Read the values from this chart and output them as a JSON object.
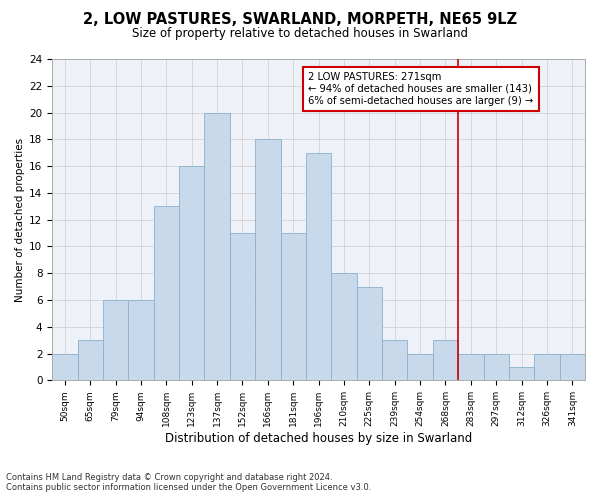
{
  "title": "2, LOW PASTURES, SWARLAND, MORPETH, NE65 9LZ",
  "subtitle": "Size of property relative to detached houses in Swarland",
  "xlabel": "Distribution of detached houses by size in Swarland",
  "ylabel": "Number of detached properties",
  "categories": [
    "50sqm",
    "65sqm",
    "79sqm",
    "94sqm",
    "108sqm",
    "123sqm",
    "137sqm",
    "152sqm",
    "166sqm",
    "181sqm",
    "196sqm",
    "210sqm",
    "225sqm",
    "239sqm",
    "254sqm",
    "268sqm",
    "283sqm",
    "297sqm",
    "312sqm",
    "326sqm",
    "341sqm"
  ],
  "values": [
    2,
    3,
    6,
    6,
    13,
    16,
    20,
    11,
    18,
    11,
    17,
    8,
    7,
    3,
    2,
    3,
    2,
    2,
    1,
    2,
    2
  ],
  "bar_color": "#c8d9ec",
  "bar_edge_color": "#8ab0cc",
  "grid_color": "#cccccc",
  "vline_x": 15.5,
  "vline_color": "#cc0000",
  "annotation_text": "2 LOW PASTURES: 271sqm\n← 94% of detached houses are smaller (143)\n6% of semi-detached houses are larger (9) →",
  "annotation_box_color": "#cc0000",
  "ylim": [
    0,
    24
  ],
  "yticks": [
    0,
    2,
    4,
    6,
    8,
    10,
    12,
    14,
    16,
    18,
    20,
    22,
    24
  ],
  "footnote": "Contains HM Land Registry data © Crown copyright and database right 2024.\nContains public sector information licensed under the Open Government Licence v3.0.",
  "bg_color": "#eef2f8"
}
